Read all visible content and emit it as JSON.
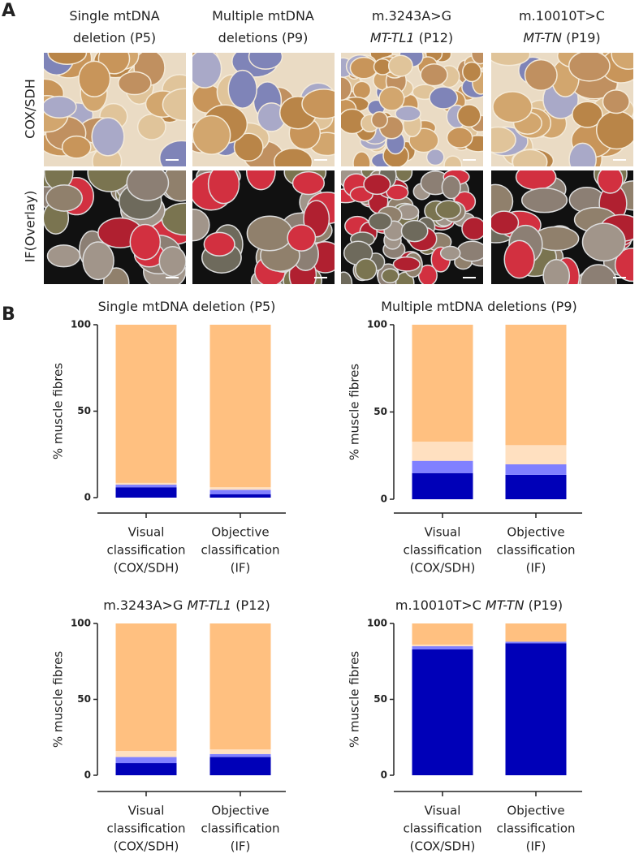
{
  "panel_a": {
    "label": "A",
    "columns": [
      [
        [
          {
            "text": "Single mtDNA",
            "italic": false
          }
        ],
        [
          {
            "text": "deletion (P5)",
            "italic": false
          }
        ]
      ],
      [
        [
          {
            "text": "Multiple mtDNA",
            "italic": false
          }
        ],
        [
          {
            "text": "deletions (P9)",
            "italic": false
          }
        ]
      ],
      [
        [
          {
            "text": "m.3243A>G",
            "italic": false
          }
        ],
        [
          {
            "text": "MT-TL1",
            "italic": true
          },
          {
            "text": " (P12)",
            "italic": false
          }
        ]
      ],
      [
        [
          {
            "text": "m.10010T>C",
            "italic": false
          }
        ],
        [
          {
            "text": "MT-TN",
            "italic": true
          },
          {
            "text": "  (P19)",
            "italic": false
          }
        ]
      ]
    ],
    "rows": [
      "COX/SDH",
      "IF(Overlay)"
    ]
  },
  "panel_b": {
    "label": "B"
  },
  "chart_data": [
    {
      "type": "bar",
      "stacked": true,
      "title": [
        {
          "text": "Single mtDNA deletion (P5)",
          "italic": false
        }
      ],
      "ylabel": "% muscle fibres",
      "categories": [
        [
          "Visual",
          "classification",
          "(COX/SDH)"
        ],
        [
          "Objective",
          "classification",
          "(IF)"
        ]
      ],
      "series": [
        {
          "color": "#0000b8",
          "values": [
            6,
            2
          ]
        },
        {
          "color": "#8080ff",
          "values": [
            1.5,
            2.5
          ]
        },
        {
          "color": "#ffe0c0",
          "values": [
            1,
            1.5
          ]
        },
        {
          "color": "#ffc080",
          "values": [
            91.5,
            94
          ]
        }
      ],
      "ylim": [
        0,
        100
      ],
      "yticks": [
        0,
        50,
        100
      ]
    },
    {
      "type": "bar",
      "stacked": true,
      "title": [
        {
          "text": "Multiple mtDNA deletions (P9)",
          "italic": false
        }
      ],
      "ylabel": "% muscle fibres",
      "categories": [
        [
          "Visual",
          "classification",
          "(COX/SDH)"
        ],
        [
          "Objective",
          "classification",
          "(IF)"
        ]
      ],
      "series": [
        {
          "color": "#0000b8",
          "values": [
            15,
            14
          ]
        },
        {
          "color": "#8080ff",
          "values": [
            7,
            6
          ]
        },
        {
          "color": "#ffe0c0",
          "values": [
            11,
            11
          ]
        },
        {
          "color": "#ffc080",
          "values": [
            67,
            69
          ]
        }
      ],
      "ylim": [
        0,
        100
      ],
      "yticks": [
        0,
        50,
        100
      ]
    },
    {
      "type": "bar",
      "stacked": true,
      "title": [
        {
          "text": "m.3243A>G ",
          "italic": false
        },
        {
          "text": "MT-TL1",
          "italic": true
        },
        {
          "text": " (P12)",
          "italic": false
        }
      ],
      "ylabel": "% muscle fibres",
      "categories": [
        [
          "Visual",
          "classification",
          "(COX/SDH)"
        ],
        [
          "Objective",
          "classification",
          "(IF)"
        ]
      ],
      "series": [
        {
          "color": "#0000b8",
          "values": [
            8,
            12
          ]
        },
        {
          "color": "#8080ff",
          "values": [
            4,
            2
          ]
        },
        {
          "color": "#ffe0c0",
          "values": [
            4,
            3
          ]
        },
        {
          "color": "#ffc080",
          "values": [
            84,
            83
          ]
        }
      ],
      "ylim": [
        0,
        100
      ],
      "yticks": [
        0,
        50,
        100
      ]
    },
    {
      "type": "bar",
      "stacked": true,
      "title": [
        {
          "text": "m.10010T>C ",
          "italic": false
        },
        {
          "text": "MT-TN",
          "italic": true
        },
        {
          "text": "  (P19)",
          "italic": false
        }
      ],
      "ylabel": "% muscle fibres",
      "categories": [
        [
          "Visual",
          "classification",
          "(COX/SDH)"
        ],
        [
          "Objective",
          "classification",
          "(IF)"
        ]
      ],
      "series": [
        {
          "color": "#0000b8",
          "values": [
            83,
            87
          ]
        },
        {
          "color": "#8080ff",
          "values": [
            2,
            1
          ]
        },
        {
          "color": "#ffe0c0",
          "values": [
            1,
            0
          ]
        },
        {
          "color": "#ffc080",
          "values": [
            14,
            12
          ]
        }
      ],
      "ylim": [
        0,
        100
      ],
      "yticks": [
        0,
        50,
        100
      ]
    }
  ]
}
